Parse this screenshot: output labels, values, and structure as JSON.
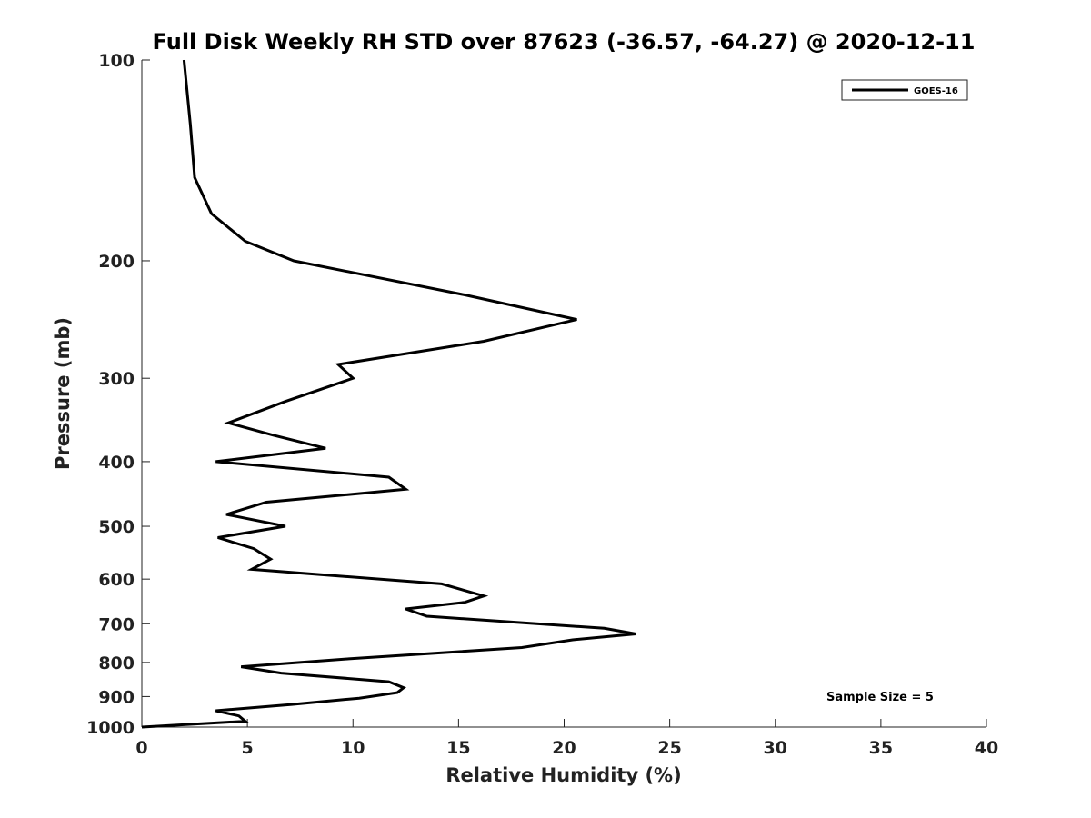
{
  "chart_data": {
    "type": "line",
    "title": "Full Disk Weekly RH STD over 87623 (-36.57, -64.27) @ 2020-12-11",
    "xlabel": "Relative Humidity (%)",
    "ylabel": "Pressure (mb)",
    "xlim": [
      0,
      40
    ],
    "ylim": [
      100,
      1000
    ],
    "y_scale": "log",
    "y_reversed": true,
    "x_ticks": [
      0,
      5,
      10,
      15,
      20,
      25,
      30,
      35,
      40
    ],
    "y_ticks": [
      100,
      200,
      300,
      400,
      500,
      600,
      700,
      800,
      900,
      1000
    ],
    "grid": false,
    "legend_position": "top-right",
    "annotation": "Sample Size = 5",
    "series": [
      {
        "name": "GOES-16",
        "color": "#000000",
        "points": [
          [
            2.0,
            100
          ],
          [
            2.3,
            125
          ],
          [
            2.5,
            150
          ],
          [
            3.3,
            170
          ],
          [
            4.9,
            187
          ],
          [
            7.2,
            200
          ],
          [
            15.3,
            225
          ],
          [
            20.6,
            245
          ],
          [
            16.2,
            264
          ],
          [
            9.3,
            286
          ],
          [
            10.0,
            300
          ],
          [
            6.8,
            325
          ],
          [
            4.1,
            350
          ],
          [
            6.2,
            365
          ],
          [
            8.7,
            382
          ],
          [
            3.5,
            400
          ],
          [
            11.7,
            422
          ],
          [
            12.5,
            440
          ],
          [
            5.9,
            460
          ],
          [
            4.0,
            480
          ],
          [
            6.8,
            500
          ],
          [
            3.6,
            520
          ],
          [
            5.3,
            540
          ],
          [
            6.1,
            560
          ],
          [
            5.2,
            580
          ],
          [
            14.2,
            610
          ],
          [
            16.2,
            636
          ],
          [
            15.3,
            650
          ],
          [
            12.5,
            665
          ],
          [
            13.5,
            682
          ],
          [
            21.9,
            711
          ],
          [
            23.4,
            725
          ],
          [
            20.4,
            740
          ],
          [
            18.0,
            760
          ],
          [
            9.8,
            790
          ],
          [
            4.7,
            812
          ],
          [
            6.6,
            830
          ],
          [
            11.7,
            855
          ],
          [
            12.4,
            873
          ],
          [
            12.1,
            888
          ],
          [
            10.3,
            905
          ],
          [
            7.1,
            925
          ],
          [
            3.5,
            945
          ],
          [
            4.6,
            962
          ],
          [
            4.9,
            980
          ],
          [
            0.0,
            1000
          ]
        ]
      }
    ]
  }
}
